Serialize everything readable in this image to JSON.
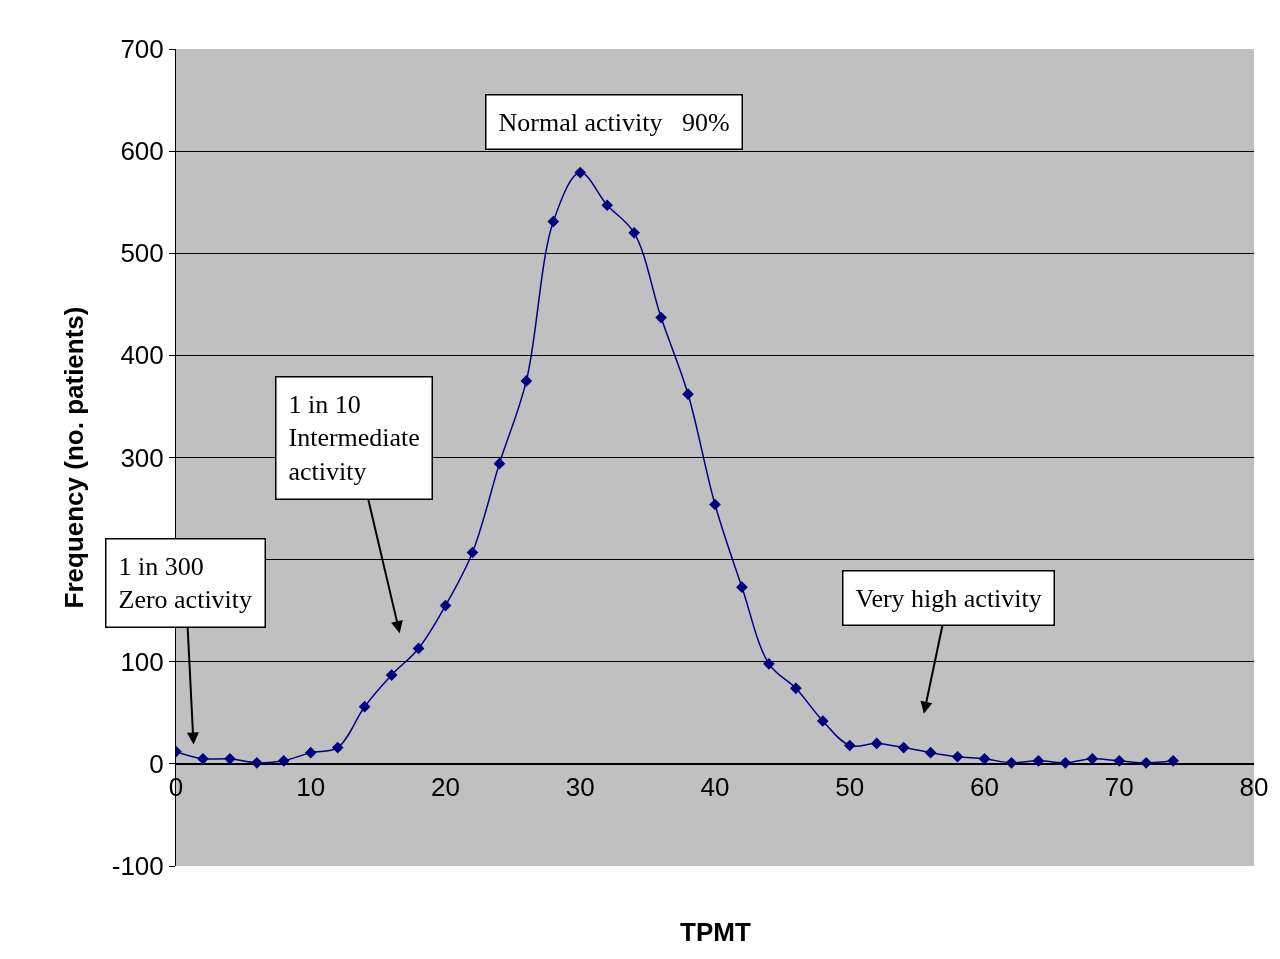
{
  "chart_data": {
    "type": "line",
    "xlabel": "TPMT",
    "ylabel": "Frequency (no. patients)",
    "x": [
      0,
      2,
      4,
      6,
      8,
      10,
      12,
      14,
      16,
      18,
      20,
      22,
      24,
      26,
      28,
      30,
      32,
      34,
      36,
      38,
      40,
      42,
      44,
      46,
      48,
      50,
      52,
      54,
      56,
      58,
      60,
      62,
      64,
      66,
      68,
      70,
      72,
      74
    ],
    "series": [
      {
        "color": "#000080",
        "values": [
          12,
          5,
          5,
          1,
          3,
          11,
          16,
          56,
          87,
          113,
          155,
          207,
          294,
          375,
          531,
          579,
          547,
          520,
          437,
          362,
          254,
          173,
          98,
          74,
          42,
          18,
          20,
          16,
          11,
          7,
          5,
          1,
          3,
          1,
          5,
          3,
          1,
          3
        ]
      }
    ],
    "xlim": [
      0,
      80
    ],
    "xticks": [
      0,
      10,
      20,
      30,
      40,
      50,
      60,
      70,
      80
    ],
    "ylim": [
      -100,
      700
    ],
    "yticks": [
      -100,
      0,
      100,
      {
        "value": 200,
        "label": null
      },
      300,
      400,
      500,
      600,
      700
    ],
    "grid": "y",
    "marker": "diamond",
    "line_style": "solid",
    "legend": false,
    "annotations": [
      "Normal activity   90%",
      "1 in 300\nZero activity",
      "1 in 10\nIntermediate\nactivity",
      "Very high activity"
    ]
  }
}
